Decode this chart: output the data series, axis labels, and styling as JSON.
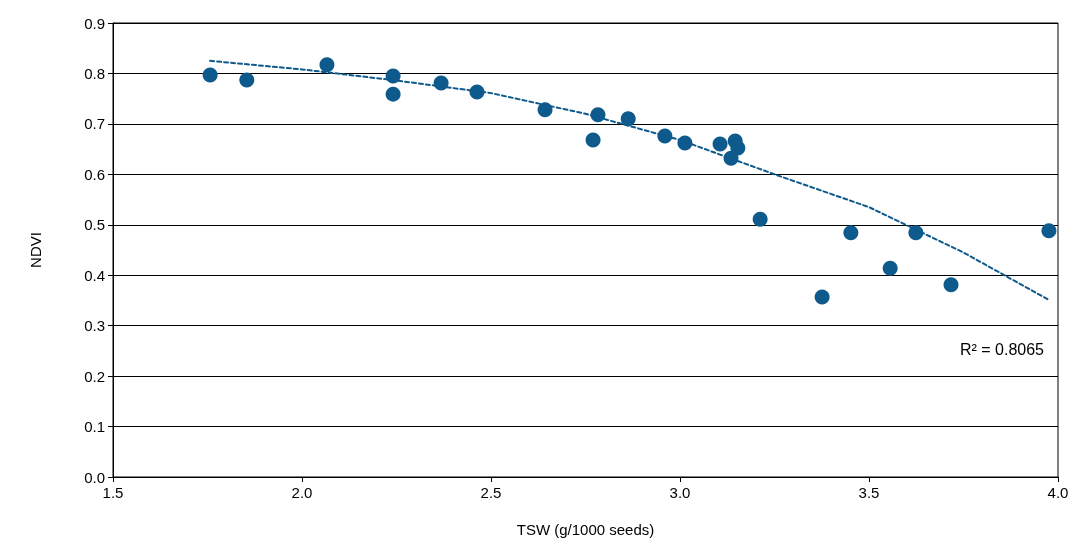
{
  "chart_data": {
    "type": "scatter",
    "xlabel": "TSW (g/1000 seeds)",
    "ylabel": "NDVI",
    "xlim": [
      1.5,
      4.0
    ],
    "ylim": [
      0,
      0.9
    ],
    "xticks": [
      1.5,
      {
        "value": 2,
        "label": "2.0"
      },
      2.5,
      {
        "value": 3,
        "label": "3.0"
      },
      3.5,
      {
        "value": 4,
        "label": "4.0"
      }
    ],
    "yticks": [
      {
        "value": 0,
        "label": "0.0"
      },
      0.1,
      0.2,
      0.3,
      0.4,
      0.5,
      0.6,
      0.7,
      0.8,
      0.9
    ],
    "grid": "y",
    "marker": "circle",
    "series": [
      {
        "color": "#0f5a8c",
        "x": [
          1.757,
          1.854,
          2.066,
          2.241,
          2.241,
          2.368,
          2.463,
          2.643,
          2.783,
          2.77,
          2.863,
          2.96,
          3.013,
          3.106,
          3.146,
          3.153,
          3.135,
          3.212,
          3.452,
          3.376,
          3.624,
          3.556,
          3.717,
          3.976
        ],
        "values": [
          0.797,
          0.787,
          0.817,
          0.795,
          0.759,
          0.781,
          0.763,
          0.728,
          0.718,
          0.668,
          0.71,
          0.676,
          0.662,
          0.66,
          0.666,
          0.652,
          0.632,
          0.511,
          0.484,
          0.357,
          0.484,
          0.414,
          0.381,
          0.488
        ]
      },
      {
        "type": "line",
        "color": "#0f5a8c",
        "line_style": "dashed",
        "marker": "none",
        "x": [
          1.757,
          2.0,
          2.25,
          2.5,
          2.75,
          3.0,
          3.25,
          3.5,
          3.75,
          3.976
        ],
        "values": [
          0.825,
          0.808,
          0.786,
          0.761,
          0.72,
          0.668,
          0.6,
          0.535,
          0.445,
          0.351
        ]
      }
    ],
    "annotations": [
      "R² = 0.8065"
    ]
  }
}
